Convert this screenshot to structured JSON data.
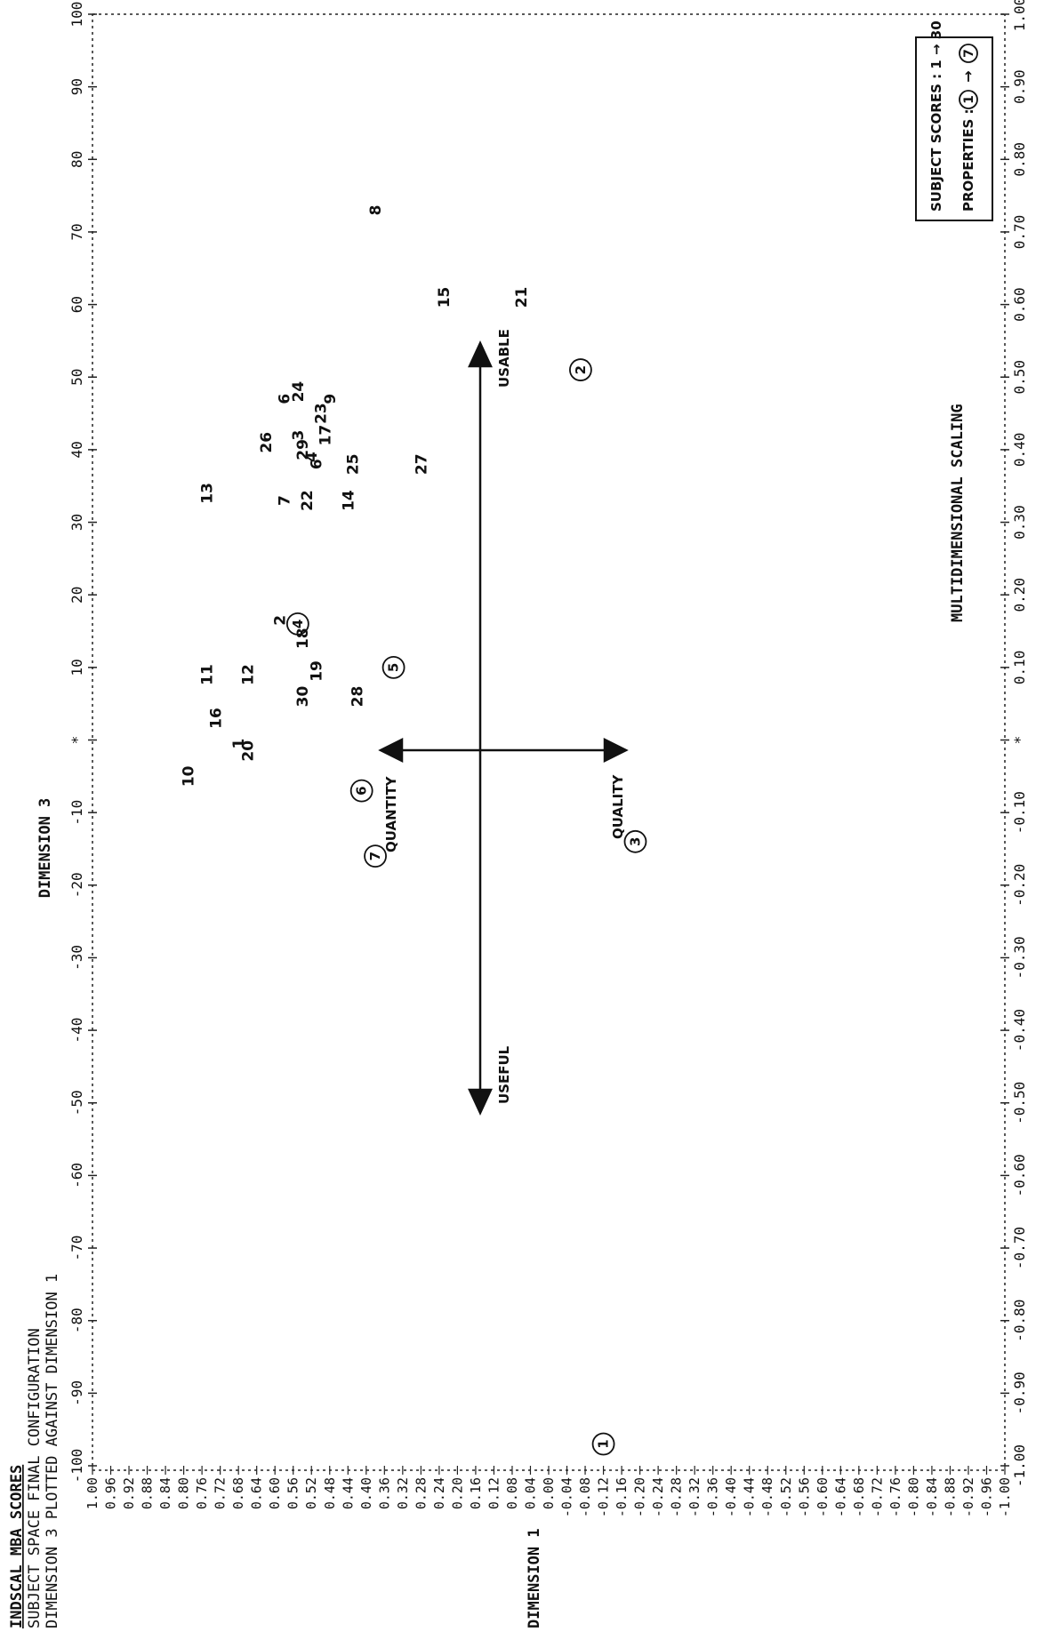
{
  "header": {
    "line1": "INDSCAL MBA SCORES",
    "line2": "SUBJECT SPACE    FINAL CONFIGURATION",
    "line3": "DIMENSION  3 PLOTTED AGAINST DIMENSION  1"
  },
  "main_title": "MULTIDIMENSIONAL SCALING",
  "legend": {
    "line1": "SUBJECT SCORES : 1 → 30",
    "line2_prefix": "PROPERTIES :",
    "from": "1",
    "arrow": "→",
    "to": "7"
  },
  "chart_data": {
    "type": "scatter",
    "top_axis": {
      "label": "DIMENSION 3",
      "ticks": [
        "-100",
        "-90",
        "-80",
        "-70",
        "-60",
        "-50",
        "-40",
        "-30",
        "-20",
        "-10",
        "*",
        "10",
        "20",
        "30",
        "40",
        "50",
        "60",
        "70",
        "80",
        "90",
        "100"
      ]
    },
    "bottom_axis": {
      "ticks": [
        "-1.00",
        "-0.90",
        "-0.80",
        "-0.70",
        "-0.60",
        "-0.50",
        "-0.40",
        "-0.30",
        "-0.20",
        "-0.10",
        "*",
        "0.10",
        "0.20",
        "0.30",
        "0.40",
        "0.50",
        "0.60",
        "0.70",
        "0.80",
        "0.90",
        "1.00"
      ]
    },
    "left_axis": {
      "label": "DIMENSION 1",
      "ticks": [
        "1.00",
        "0.96",
        "0.92",
        "0.88",
        "0.84",
        "0.80",
        "0.76",
        "0.72",
        "0.68",
        "0.64",
        "0.60",
        "0.56",
        "0.52",
        "0.48",
        "0.44",
        "0.40",
        "0.36",
        "0.32",
        "0.28",
        "0.24",
        "0.20",
        "0.16",
        "0.12",
        "0.08",
        "0.04",
        "0.00",
        "-0.04",
        "-0.08",
        "-0.12",
        "-0.16",
        "-0.20",
        "-0.24",
        "-0.28",
        "-0.32",
        "-0.36",
        "-0.40",
        "-0.44",
        "-0.48",
        "-0.52",
        "-0.56",
        "-0.60",
        "-0.64",
        "-0.68",
        "-0.72",
        "-0.76",
        "-0.80",
        "-0.84",
        "-0.88",
        "-0.92",
        "-0.96",
        "-1.00"
      ]
    },
    "xlim": [
      -1,
      1
    ],
    "ylim": [
      -1,
      1
    ],
    "subjects": [
      {
        "label": "8",
        "x": 0.73,
        "y": 0.38
      },
      {
        "label": "15",
        "x": 0.61,
        "y": 0.23
      },
      {
        "label": "21",
        "x": 0.61,
        "y": 0.06
      },
      {
        "label": "24",
        "x": 0.48,
        "y": 0.55
      },
      {
        "label": "23",
        "x": 0.45,
        "y": 0.5
      },
      {
        "label": "9",
        "x": 0.47,
        "y": 0.48
      },
      {
        "label": "6",
        "x": 0.47,
        "y": 0.58
      },
      {
        "label": "17",
        "x": 0.42,
        "y": 0.49
      },
      {
        "label": "26",
        "x": 0.41,
        "y": 0.62
      },
      {
        "label": "3",
        "x": 0.42,
        "y": 0.55
      },
      {
        "label": "29",
        "x": 0.4,
        "y": 0.54
      },
      {
        "label": "4",
        "x": 0.39,
        "y": 0.52
      },
      {
        "label": "6",
        "x": 0.38,
        "y": 0.51
      },
      {
        "label": "25",
        "x": 0.38,
        "y": 0.43
      },
      {
        "label": "7",
        "x": 0.33,
        "y": 0.58
      },
      {
        "label": "22",
        "x": 0.33,
        "y": 0.53
      },
      {
        "label": "14",
        "x": 0.33,
        "y": 0.44
      },
      {
        "label": "27",
        "x": 0.38,
        "y": 0.28
      },
      {
        "label": "13",
        "x": 0.34,
        "y": 0.75
      },
      {
        "label": "11",
        "x": 0.09,
        "y": 0.75
      },
      {
        "label": "12",
        "x": 0.09,
        "y": 0.66
      },
      {
        "label": "2",
        "x": 0.165,
        "y": 0.59
      },
      {
        "label": "18",
        "x": 0.14,
        "y": 0.54
      },
      {
        "label": "30",
        "x": 0.06,
        "y": 0.54
      },
      {
        "label": "19",
        "x": 0.095,
        "y": 0.51
      },
      {
        "label": "28",
        "x": 0.06,
        "y": 0.42
      },
      {
        "label": "16",
        "x": 0.03,
        "y": 0.73
      },
      {
        "label": "1",
        "x": -0.005,
        "y": 0.68
      },
      {
        "label": "20",
        "x": -0.015,
        "y": 0.66
      },
      {
        "label": "10",
        "x": -0.05,
        "y": 0.79
      }
    ],
    "properties": [
      {
        "label": "1",
        "x": -0.97,
        "y": -0.12
      },
      {
        "label": "2",
        "x": 0.51,
        "y": -0.07
      },
      {
        "label": "3",
        "x": -0.14,
        "y": -0.19
      },
      {
        "label": "4",
        "x": 0.16,
        "y": 0.55
      },
      {
        "label": "5",
        "x": 0.1,
        "y": 0.34
      },
      {
        "label": "6",
        "x": -0.07,
        "y": 0.41
      },
      {
        "label": "7",
        "x": -0.16,
        "y": 0.38
      }
    ],
    "axis_labels": {
      "usable": "USABLE",
      "useful": "USEFUL",
      "quantity": "QUANTITY",
      "quality": "QUALITY"
    }
  }
}
